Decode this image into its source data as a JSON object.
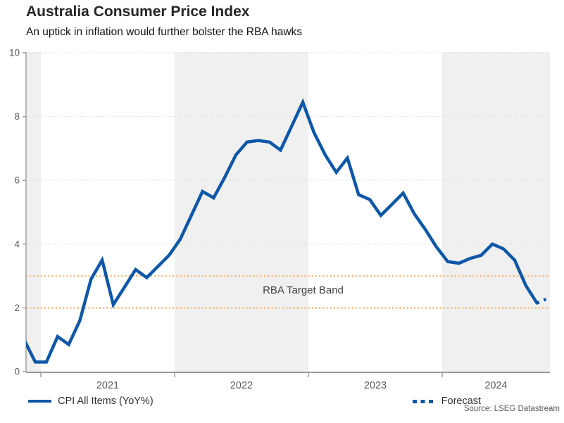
{
  "header": {
    "title": "Australia Consumer Price Index",
    "subtitle": "An uptick in inflation would further bolster the RBA hawks"
  },
  "chart_data": {
    "type": "line",
    "title": "Australia Consumer Price Index",
    "xlabel": "",
    "ylabel": "",
    "ylim": [
      0,
      10
    ],
    "yticks": [
      0,
      2,
      4,
      6,
      8,
      10
    ],
    "x_year_labels": [
      "2021",
      "2022",
      "2023",
      "2024"
    ],
    "shaded_years": [
      2020,
      2022,
      2024
    ],
    "grid": "dotted-horizontal",
    "band_label": "RBA Target Band",
    "target_band": [
      2,
      3
    ],
    "legend_position": "bottom",
    "series": [
      {
        "name": "CPI All Items (YoY%)",
        "style": "solid",
        "points": [
          [
            "2020-11",
            1.0
          ],
          [
            "2020-12",
            0.3
          ],
          [
            "2021-01",
            0.3
          ],
          [
            "2021-02",
            1.1
          ],
          [
            "2021-03",
            0.85
          ],
          [
            "2021-04",
            1.6
          ],
          [
            "2021-05",
            2.9
          ],
          [
            "2021-06",
            3.5
          ],
          [
            "2021-07",
            2.1
          ],
          [
            "2021-08",
            2.65
          ],
          [
            "2021-09",
            3.2
          ],
          [
            "2021-10",
            2.95
          ],
          [
            "2021-11",
            3.3
          ],
          [
            "2021-12",
            3.65
          ],
          [
            "2022-01",
            4.15
          ],
          [
            "2022-02",
            4.9
          ],
          [
            "2022-03",
            5.65
          ],
          [
            "2022-04",
            5.45
          ],
          [
            "2022-05",
            6.1
          ],
          [
            "2022-06",
            6.8
          ],
          [
            "2022-07",
            7.2
          ],
          [
            "2022-08",
            7.25
          ],
          [
            "2022-09",
            7.2
          ],
          [
            "2022-10",
            6.95
          ],
          [
            "2022-11",
            7.7
          ],
          [
            "2022-12",
            8.45
          ],
          [
            "2023-01",
            7.5
          ],
          [
            "2023-02",
            6.8
          ],
          [
            "2023-03",
            6.25
          ],
          [
            "2023-04",
            6.7
          ],
          [
            "2023-05",
            5.55
          ],
          [
            "2023-06",
            5.4
          ],
          [
            "2023-07",
            4.9
          ],
          [
            "2023-08",
            5.25
          ],
          [
            "2023-09",
            5.6
          ],
          [
            "2023-10",
            4.95
          ],
          [
            "2023-11",
            4.45
          ],
          [
            "2023-12",
            3.9
          ],
          [
            "2024-01",
            3.45
          ],
          [
            "2024-02",
            3.4
          ],
          [
            "2024-03",
            3.55
          ],
          [
            "2024-04",
            3.65
          ],
          [
            "2024-05",
            4.0
          ],
          [
            "2024-06",
            3.85
          ],
          [
            "2024-07",
            3.5
          ],
          [
            "2024-08",
            2.7
          ],
          [
            "2024-09",
            2.15
          ]
        ]
      },
      {
        "name": "Forecast",
        "style": "dotted",
        "points": [
          [
            "2024-09",
            2.15
          ],
          [
            "2024-10",
            2.3
          ]
        ]
      }
    ]
  },
  "legend": {
    "items": [
      {
        "label": "CPI All Items (YoY%)"
      },
      {
        "label": "Forecast"
      }
    ]
  },
  "source": "Source: LSEG Datastream",
  "colors": {
    "line": "#0e57a8",
    "target_band": "#f9bc83",
    "year_shade": "#f0f0f0",
    "gridline": "#d8d8d8",
    "axis": "#9a9a9a",
    "tick_text": "#595959"
  }
}
